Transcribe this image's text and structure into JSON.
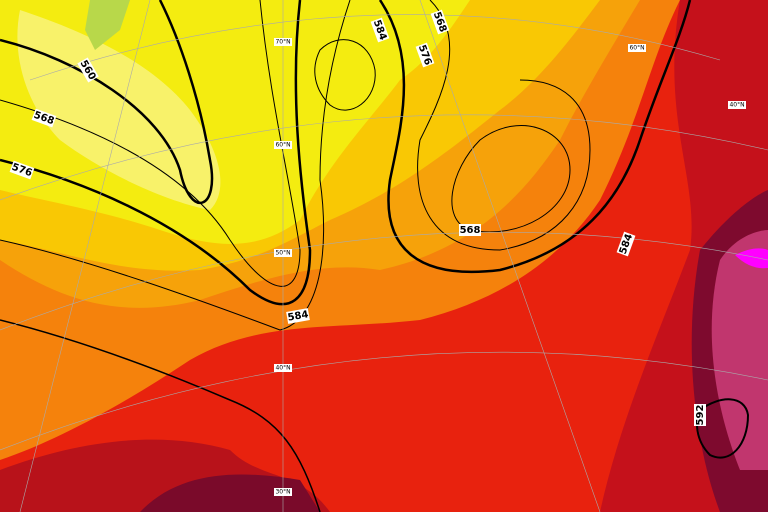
{
  "contour_labels": [
    "560",
    "568",
    "576",
    "584",
    "576",
    "568",
    "568",
    "584",
    "584",
    "592"
  ],
  "latitude_labels": [
    "70°N",
    "60°N",
    "50°N",
    "40°N",
    "30°N",
    "60°N",
    "40°N"
  ]
}
